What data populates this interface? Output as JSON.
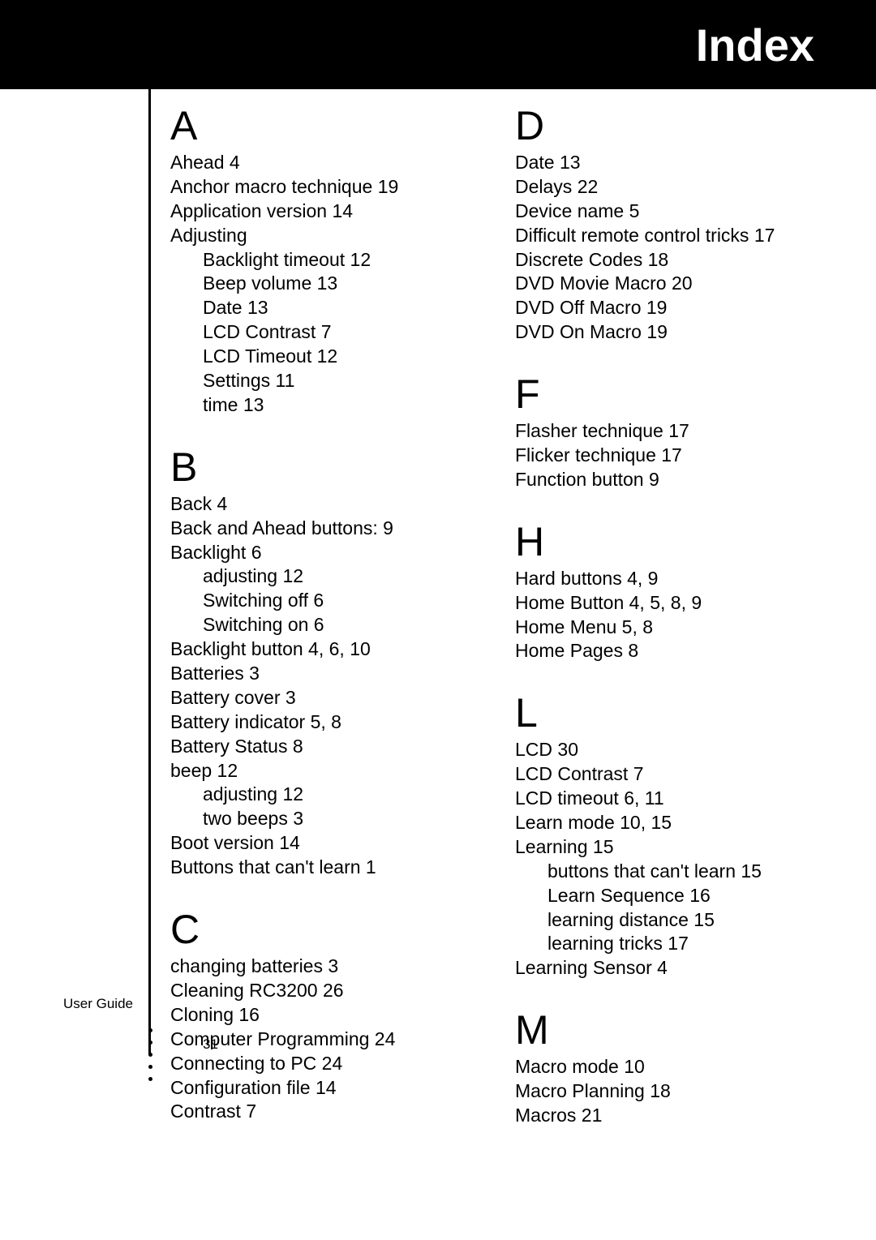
{
  "header": {
    "title": "Index"
  },
  "footer": {
    "label": "User Guide",
    "page": "31"
  },
  "colors": {
    "header_bg": "#000000",
    "header_text": "#ffffff",
    "text": "#000000",
    "bg": "#ffffff"
  },
  "typography": {
    "letter_fontsize": 50,
    "entry_fontsize": 23,
    "header_fontsize": 56,
    "footer_fontsize": 17
  },
  "left": [
    {
      "letter": "A",
      "items": [
        {
          "t": "Ahead 4"
        },
        {
          "t": "Anchor macro technique 19"
        },
        {
          "t": "Application version 14"
        },
        {
          "t": "Adjusting"
        },
        {
          "t": "Backlight timeout 12",
          "sub": true
        },
        {
          "t": "Beep volume 13",
          "sub": true
        },
        {
          "t": "Date 13",
          "sub": true
        },
        {
          "t": "LCD Contrast 7",
          "sub": true
        },
        {
          "t": "LCD Timeout 12",
          "sub": true
        },
        {
          "t": "Settings 11",
          "sub": true
        },
        {
          "t": "time 13",
          "sub": true
        }
      ]
    },
    {
      "letter": "B",
      "items": [
        {
          "t": "Back 4"
        },
        {
          "t": "Back and Ahead buttons: 9"
        },
        {
          "t": "Backlight 6"
        },
        {
          "t": "adjusting 12",
          "sub": true
        },
        {
          "t": "Switching off 6",
          "sub": true
        },
        {
          "t": "Switching on 6",
          "sub": true
        },
        {
          "t": "Backlight button 4, 6, 10"
        },
        {
          "t": "Batteries 3"
        },
        {
          "t": "Battery cover 3"
        },
        {
          "t": "Battery indicator 5, 8"
        },
        {
          "t": "Battery Status 8"
        },
        {
          "t": "beep 12"
        },
        {
          "t": "adjusting 12",
          "sub": true
        },
        {
          "t": "two beeps 3",
          "sub": true
        },
        {
          "t": "Boot version 14"
        },
        {
          "t": "Buttons that can't learn 1"
        }
      ]
    },
    {
      "letter": "C",
      "items": [
        {
          "t": "changing batteries 3"
        },
        {
          "t": "Cleaning RC3200 26"
        },
        {
          "t": "Cloning 16"
        },
        {
          "t": "Computer Programming 24"
        },
        {
          "t": "Connecting to PC 24"
        },
        {
          "t": "Configuration file 14"
        },
        {
          "t": "Contrast 7"
        }
      ]
    }
  ],
  "right": [
    {
      "letter": "D",
      "items": [
        {
          "t": "Date 13"
        },
        {
          "t": "Delays 22"
        },
        {
          "t": "Device name 5"
        },
        {
          "t": "Difficult remote control tricks 17"
        },
        {
          "t": "Discrete Codes 18"
        },
        {
          "t": "DVD Movie Macro 20"
        },
        {
          "t": "DVD Off Macro 19"
        },
        {
          "t": "DVD On Macro 19"
        }
      ]
    },
    {
      "letter": "F",
      "items": [
        {
          "t": "Flasher technique 17"
        },
        {
          "t": "Flicker technique 17"
        },
        {
          "t": "Function button 9"
        }
      ]
    },
    {
      "letter": "H",
      "items": [
        {
          "t": "Hard buttons 4, 9"
        },
        {
          "t": "Home Button 4, 5, 8, 9"
        },
        {
          "t": "Home Menu 5, 8"
        },
        {
          "t": "Home Pages 8"
        }
      ]
    },
    {
      "letter": "L",
      "items": [
        {
          "t": "LCD 30"
        },
        {
          "t": "LCD Contrast 7"
        },
        {
          "t": "LCD timeout 6, 11"
        },
        {
          "t": "Learn mode 10, 15"
        },
        {
          "t": "Learning 15"
        },
        {
          "t": "buttons that can't learn 15",
          "sub": true
        },
        {
          "t": "Learn Sequence 16",
          "sub": true
        },
        {
          "t": "learning distance 15",
          "sub": true
        },
        {
          "t": "learning tricks 17",
          "sub": true
        },
        {
          "t": "Learning Sensor 4"
        }
      ]
    },
    {
      "letter": "M",
      "items": [
        {
          "t": "Macro mode 10"
        },
        {
          "t": "Macro Planning 18"
        },
        {
          "t": "Macros 21"
        }
      ]
    }
  ]
}
